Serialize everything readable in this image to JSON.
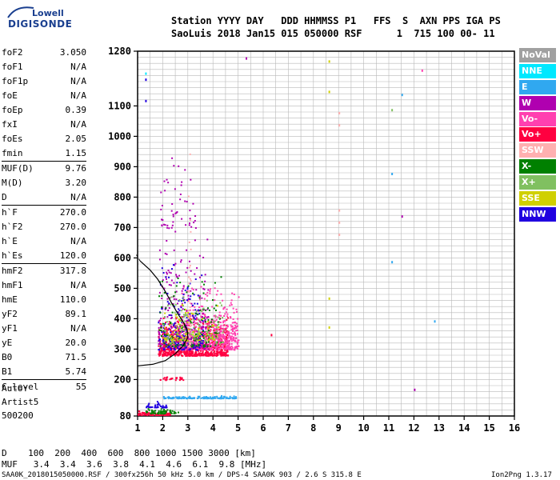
{
  "logo": {
    "line1": "Lowell",
    "line2": "DIGISONDE"
  },
  "header": {
    "line1": "Station YYYY DAY   DDD HHMMSS P1   FFS  S  AXN PPS IGA PS",
    "line2": "SaoLuis 2018 Jan15 015 050000 RSF      1  715 100 00- 11"
  },
  "params": [
    {
      "label": "foF2",
      "value": "3.050"
    },
    {
      "label": "foF1",
      "value": "N/A"
    },
    {
      "label": "foF1p",
      "value": "N/A"
    },
    {
      "label": "foE",
      "value": "N/A"
    },
    {
      "label": "foEp",
      "value": "0.39"
    },
    {
      "label": "fxI",
      "value": "N/A"
    },
    {
      "label": "foEs",
      "value": "2.05"
    },
    {
      "label": "fmin",
      "value": "1.15"
    },
    {
      "label": "MUF(D)",
      "value": "9.76"
    },
    {
      "label": "M(D)",
      "value": "3.20"
    },
    {
      "label": "D",
      "value": "N/A"
    },
    {
      "label": "h`F",
      "value": "270.0"
    },
    {
      "label": "h`F2",
      "value": "270.0"
    },
    {
      "label": "h`E",
      "value": "N/A"
    },
    {
      "label": "h`Es",
      "value": "120.0"
    },
    {
      "label": "hmF2",
      "value": "317.8"
    },
    {
      "label": "hmF1",
      "value": "N/A"
    },
    {
      "label": "hmE",
      "value": "110.0"
    },
    {
      "label": "yF2",
      "value": "89.1"
    },
    {
      "label": "yF1",
      "value": "N/A"
    },
    {
      "label": "yE",
      "value": "20.0"
    },
    {
      "label": "B0",
      "value": "71.5"
    },
    {
      "label": "B1",
      "value": "5.74"
    },
    {
      "label": "C-level",
      "value": "55"
    }
  ],
  "auto": {
    "line1": "Auto:",
    "line2": "Artist5",
    "line3": "500200"
  },
  "legend": [
    {
      "label": "NoVal",
      "color": "#a0a0a0"
    },
    {
      "label": "NNE",
      "color": "#00e8ff"
    },
    {
      "label": "E",
      "color": "#30a8f0"
    },
    {
      "label": "W",
      "color": "#b000b0"
    },
    {
      "label": "Vo-",
      "color": "#ff40b0"
    },
    {
      "label": "Vo+",
      "color": "#ff0040"
    },
    {
      "label": "SSW",
      "color": "#ffb0b0"
    },
    {
      "label": "X-",
      "color": "#008000"
    },
    {
      "label": "X+",
      "color": "#80c060"
    },
    {
      "label": "SSE",
      "color": "#d0d000"
    },
    {
      "label": "NNW",
      "color": "#2000e0"
    }
  ],
  "footer": {
    "d_line": "D    100  200  400  600  800 1000 1500 3000 [km]",
    "muf_line": "MUF   3.4  3.4  3.6  3.8  4.1  4.6  6.1  9.8 [MHz]",
    "file_info": "SAA0K_2018015050000.RSF / 300fx256h 50 kHz 5.0 km / DPS-4 SAA0K 903 / 2.6 S 315.8 E",
    "version": "Ion2Png 1.3.17"
  },
  "chart_data": {
    "type": "scatter",
    "xlim": [
      1,
      16
    ],
    "ylim": [
      80,
      1280
    ],
    "x_ticks": [
      1,
      2,
      3,
      4,
      5,
      6,
      7,
      8,
      9,
      10,
      11,
      12,
      13,
      14,
      15,
      16
    ],
    "y_ticks": [
      80,
      200,
      300,
      400,
      500,
      600,
      700,
      800,
      900,
      1000,
      1100,
      1280
    ],
    "grid": true,
    "trace_profile": {
      "color": "#000000",
      "points": [
        [
          1.0,
          245
        ],
        [
          1.6,
          250
        ],
        [
          2.1,
          262
        ],
        [
          2.5,
          285
        ],
        [
          2.8,
          310
        ],
        [
          2.95,
          330
        ],
        [
          3.0,
          340
        ],
        [
          2.97,
          365
        ],
        [
          2.85,
          385
        ],
        [
          2.65,
          410
        ],
        [
          2.4,
          445
        ],
        [
          2.1,
          490
        ],
        [
          1.8,
          530
        ],
        [
          1.5,
          560
        ],
        [
          1.1,
          590
        ]
      ]
    },
    "clusters": [
      {
        "name": "Vo+",
        "color": "#ff0040",
        "x_range": [
          1.8,
          4.6
        ],
        "y_range": [
          280,
          420
        ],
        "count": 850
      },
      {
        "name": "Vo-",
        "color": "#ff40b0",
        "x_range": [
          2.6,
          5.0
        ],
        "y_range": [
          300,
          530
        ],
        "count": 550
      },
      {
        "name": "W",
        "color": "#b000b0",
        "x_range": [
          1.8,
          3.8
        ],
        "y_range": [
          300,
          700
        ],
        "count": 260
      },
      {
        "name": "NNW",
        "color": "#2000e0",
        "x_range": [
          1.8,
          3.6
        ],
        "y_range": [
          300,
          600
        ],
        "count": 180
      },
      {
        "name": "X-",
        "color": "#008000",
        "x_range": [
          1.8,
          4.3
        ],
        "y_range": [
          310,
          560
        ],
        "count": 150
      },
      {
        "name": "X+",
        "color": "#80c060",
        "x_range": [
          2.0,
          4.4
        ],
        "y_range": [
          320,
          500
        ],
        "count": 120
      },
      {
        "name": "SSE",
        "color": "#d0d000",
        "x_range": [
          2.0,
          4.2
        ],
        "y_range": [
          330,
          480
        ],
        "count": 80
      },
      {
        "name": "E",
        "color": "#30a8f0",
        "x_range": [
          2.0,
          4.9
        ],
        "y_range": [
          140,
          150
        ],
        "count": 140
      },
      {
        "name": "Vo+",
        "color": "#ff0040",
        "x_range": [
          1.0,
          2.3
        ],
        "y_range": [
          85,
          100
        ],
        "count": 90
      },
      {
        "name": "X-",
        "color": "#008000",
        "x_range": [
          1.3,
          2.6
        ],
        "y_range": [
          90,
          110
        ],
        "count": 60
      },
      {
        "name": "NNW",
        "color": "#2000e0",
        "x_range": [
          1.3,
          2.2
        ],
        "y_range": [
          110,
          135
        ],
        "count": 40
      },
      {
        "name": "Vo+",
        "color": "#ff0040",
        "x_range": [
          1.8,
          3.2
        ],
        "y_range": [
          200,
          215
        ],
        "count": 25
      },
      {
        "name": "W",
        "color": "#b000b0",
        "x_range": [
          1.9,
          3.3
        ],
        "y_range": [
          700,
          960
        ],
        "count": 50
      },
      {
        "name": "Vo-",
        "color": "#ff40b0",
        "x_range": [
          4.0,
          4.9
        ],
        "y_range": [
          330,
          410
        ],
        "count": 40
      },
      {
        "name": "SSW",
        "color": "#ffb0b0",
        "x_range": [
          3.0,
          3.1
        ],
        "y_range": [
          300,
          1000
        ],
        "count": 40
      }
    ],
    "isolated_points": [
      {
        "x": 9.0,
        "y": 680,
        "color": "#ffb0b0"
      },
      {
        "x": 9.0,
        "y": 720,
        "color": "#ffb0b0"
      },
      {
        "x": 9.0,
        "y": 760,
        "color": "#ffb0b0"
      },
      {
        "x": 9.0,
        "y": 1040,
        "color": "#ffb0b0"
      },
      {
        "x": 9.0,
        "y": 1080,
        "color": "#ffb0b0"
      },
      {
        "x": 8.6,
        "y": 1250,
        "color": "#d0d000"
      },
      {
        "x": 8.6,
        "y": 1150,
        "color": "#d0d000"
      },
      {
        "x": 8.6,
        "y": 470,
        "color": "#d0d000"
      },
      {
        "x": 8.6,
        "y": 375,
        "color": "#d0d000"
      },
      {
        "x": 11.1,
        "y": 1090,
        "color": "#80c060"
      },
      {
        "x": 11.1,
        "y": 880,
        "color": "#30a8f0"
      },
      {
        "x": 11.1,
        "y": 590,
        "color": "#30a8f0"
      },
      {
        "x": 11.5,
        "y": 1140,
        "color": "#30a8f0"
      },
      {
        "x": 11.5,
        "y": 740,
        "color": "#b000b0"
      },
      {
        "x": 12.3,
        "y": 1220,
        "color": "#ff40b0"
      },
      {
        "x": 12.0,
        "y": 170,
        "color": "#b000b0"
      },
      {
        "x": 12.8,
        "y": 395,
        "color": "#30a8f0"
      },
      {
        "x": 1.3,
        "y": 1210,
        "color": "#00e8ff"
      },
      {
        "x": 1.3,
        "y": 1190,
        "color": "#2000e0"
      },
      {
        "x": 1.3,
        "y": 1120,
        "color": "#2000e0"
      },
      {
        "x": 5.3,
        "y": 1260,
        "color": "#b000b0"
      },
      {
        "x": 6.3,
        "y": 350,
        "color": "#ff0040"
      }
    ]
  }
}
